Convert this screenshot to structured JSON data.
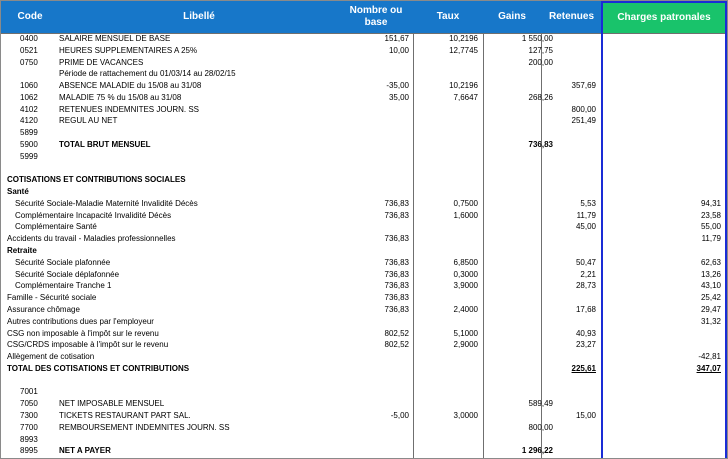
{
  "headers": {
    "code": "Code",
    "libelle": "Libellé",
    "nombre": "Nombre ou base",
    "taux": "Taux",
    "gains": "Gains",
    "retenues": "Retenues",
    "charges": "Charges patronales"
  },
  "rows": [
    {
      "code": "0400",
      "label": "SALAIRE MENSUEL DE BASE",
      "indent": 1,
      "nombre": "151,67",
      "taux": "10,2196",
      "gains": "1 550,00"
    },
    {
      "code": "0521",
      "label": "HEURES SUPPLEMENTAIRES A 25%",
      "indent": 1,
      "nombre": "10,00",
      "taux": "12,7745",
      "gains": "127,75"
    },
    {
      "code": "0750",
      "label": "PRIME DE VACANCES",
      "indent": 1,
      "gains": "200,00"
    },
    {
      "label": "Période de rattachement du 01/03/14 au 28/02/15",
      "indent": 1
    },
    {
      "code": "1060",
      "label": "ABSENCE MALADIE du 15/08 au 31/08",
      "indent": 1,
      "nombre": "-35,00",
      "taux": "10,2196",
      "retenues": "357,69"
    },
    {
      "code": "1062",
      "label": "MALADIE 75 % du 15/08 au 31/08",
      "indent": 1,
      "nombre": "35,00",
      "taux": "7,6647",
      "gains": "268,26"
    },
    {
      "code": "4102",
      "label": "RETENUES INDEMNITES JOURN. SS",
      "indent": 1,
      "retenues": "800,00"
    },
    {
      "code": "4120",
      "label": "REGUL AU NET",
      "indent": 1,
      "retenues": "251,49"
    },
    {
      "code": "5899"
    },
    {
      "code": "5900",
      "label": "TOTAL BRUT MENSUEL",
      "indent": 1,
      "bold": true,
      "gains": "736,83",
      "gainsBold": true
    },
    {
      "code": "5999"
    },
    {},
    {
      "label": "COTISATIONS ET CONTRIBUTIONS SOCIALES",
      "indent": 0,
      "bold": true
    },
    {
      "label": "Santé",
      "indent": 0,
      "bold": true
    },
    {
      "label": "Sécurité Sociale-Maladie Maternité Invalidité Décès",
      "indent": 2,
      "nombre": "736,83",
      "taux": "0,7500",
      "retenues": "5,53",
      "charges": "94,31"
    },
    {
      "label": "Complémentaire Incapacité Invalidité Décès",
      "indent": 2,
      "nombre": "736,83",
      "taux": "1,6000",
      "retenues": "11,79",
      "charges": "23,58"
    },
    {
      "label": "Complémentaire Santé",
      "indent": 2,
      "retenues": "45,00",
      "charges": "55,00"
    },
    {
      "label": "Accidents du travail - Maladies professionnelles",
      "indent": 0,
      "nombre": "736,83",
      "charges": "11,79"
    },
    {
      "label": "Retraite",
      "indent": 0,
      "bold": true
    },
    {
      "label": "Sécurité Sociale plafonnée",
      "indent": 2,
      "nombre": "736,83",
      "taux": "6,8500",
      "retenues": "50,47",
      "charges": "62,63"
    },
    {
      "label": "Sécurité Sociale déplafonnée",
      "indent": 2,
      "nombre": "736,83",
      "taux": "0,3000",
      "retenues": "2,21",
      "charges": "13,26"
    },
    {
      "label": "Complémentaire Tranche 1",
      "indent": 2,
      "nombre": "736,83",
      "taux": "3,9000",
      "retenues": "28,73",
      "charges": "43,10"
    },
    {
      "label": "Famille - Sécurité sociale",
      "indent": 0,
      "nombre": "736,83",
      "charges": "25,42"
    },
    {
      "label": "Assurance chômage",
      "indent": 0,
      "nombre": "736,83",
      "taux": "2,4000",
      "retenues": "17,68",
      "charges": "29,47"
    },
    {
      "label": "Autres contributions dues par l'employeur",
      "indent": 0,
      "charges": "31,32"
    },
    {
      "label": "CSG non imposable à l'impôt sur le revenu",
      "indent": 0,
      "nombre": "802,52",
      "taux": "5,1000",
      "retenues": "40,93"
    },
    {
      "label": "CSG/CRDS imposable à l'impôt sur le revenu",
      "indent": 0,
      "nombre": "802,52",
      "taux": "2,9000",
      "retenues": "23,27"
    },
    {
      "label": "Allègement de cotisation",
      "indent": 0,
      "charges": "-42,81"
    },
    {
      "label": "TOTAL DES COTISATIONS ET CONTRIBUTIONS",
      "indent": 0,
      "bold": true,
      "retenues": "225,61",
      "charges": "347,07",
      "totalsUnderline": true
    },
    {},
    {
      "code": "7001"
    },
    {
      "code": "7050",
      "label": "NET IMPOSABLE MENSUEL",
      "indent": 1,
      "gains": "589,49"
    },
    {
      "code": "7300",
      "label": "TICKETS RESTAURANT PART SAL.",
      "indent": 1,
      "nombre": "-5,00",
      "taux": "3,0000",
      "retenues": "15,00"
    },
    {
      "code": "7700",
      "label": "REMBOURSEMENT INDEMNITES JOURN. SS",
      "indent": 1,
      "gains": "800,00"
    },
    {
      "code": "8993"
    },
    {
      "code": "8995",
      "label": "NET A PAYER",
      "indent": 1,
      "bold": true,
      "gains": "1 296,22",
      "gainsBold": true
    }
  ]
}
